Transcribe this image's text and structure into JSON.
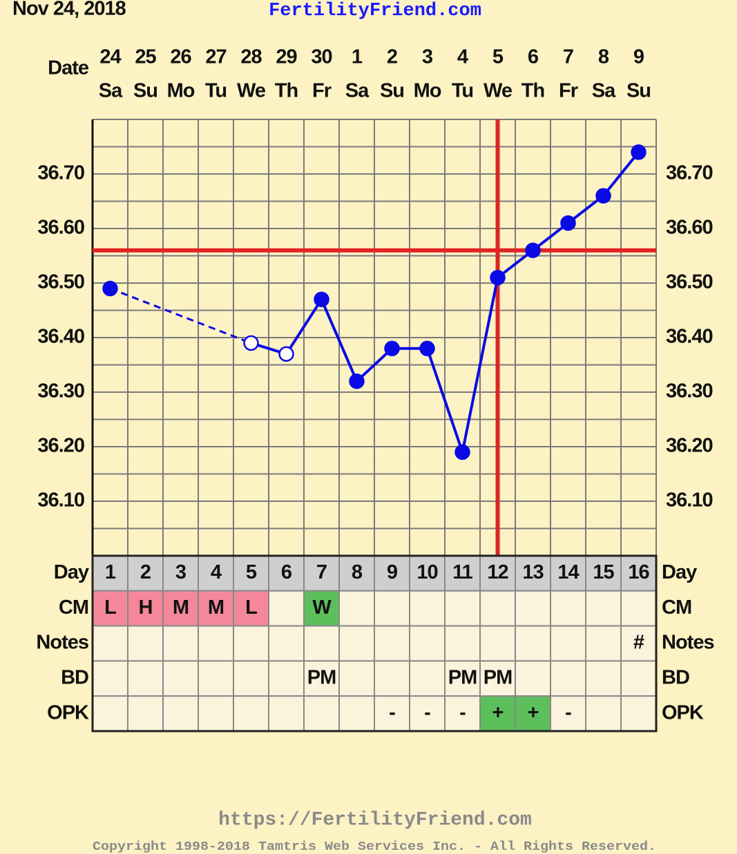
{
  "chart_data": {
    "type": "line",
    "date": "Nov 24, 2018",
    "title": "FertilityFriend.com",
    "date_label": "Date",
    "categories": [
      "24",
      "25",
      "26",
      "27",
      "28",
      "29",
      "30",
      "1",
      "2",
      "3",
      "4",
      "5",
      "6",
      "7",
      "8",
      "9"
    ],
    "weekdays": [
      "Sa",
      "Su",
      "Mo",
      "Tu",
      "We",
      "Th",
      "Fr",
      "Sa",
      "Su",
      "Mo",
      "Tu",
      "We",
      "Th",
      "Fr",
      "Sa",
      "Su"
    ],
    "series": [
      {
        "color": "#0a0ae6",
        "values": [
          36.49,
          null,
          null,
          null,
          36.39,
          36.37,
          36.47,
          36.32,
          36.38,
          36.38,
          36.19,
          36.51,
          36.56,
          36.61,
          36.66,
          36.74
        ],
        "open_markers": [
          false,
          false,
          false,
          false,
          true,
          true,
          false,
          false,
          false,
          false,
          false,
          false,
          false,
          false,
          false,
          false
        ]
      }
    ],
    "gap_line": "dashed",
    "ylim": [
      36.0,
      36.8
    ],
    "yticks": [
      {
        "value": 36.1,
        "label": "36.10"
      },
      {
        "value": 36.2,
        "label": "36.20"
      },
      {
        "value": 36.3,
        "label": "36.30"
      },
      {
        "value": 36.4,
        "label": "36.40"
      },
      {
        "value": 36.5,
        "label": "36.50"
      },
      {
        "value": 36.6,
        "label": "36.60"
      },
      {
        "value": 36.7,
        "label": "36.70"
      }
    ],
    "grid": true,
    "coverline": 36.56,
    "marker_line_color": "#e02424",
    "ovulation_day": 12,
    "table": {
      "row_labels": [
        "Day",
        "CM",
        "Notes",
        "BD",
        "OPK"
      ],
      "days": [
        1,
        2,
        3,
        4,
        5,
        6,
        7,
        8,
        9,
        10,
        11,
        12,
        13,
        14,
        15,
        16
      ],
      "rows": [
        {
          "cells": [
            "L",
            "H",
            "M",
            "M",
            "L",
            null,
            "W",
            null,
            null,
            null,
            null,
            null,
            null,
            null,
            null,
            null
          ],
          "colors": [
            "#f4889a",
            "#f4889a",
            "#f4889a",
            "#f4889a",
            "#f4889a",
            null,
            "#5cbf5c",
            null,
            null,
            null,
            null,
            null,
            null,
            null,
            null,
            null
          ]
        },
        {
          "cells": [
            null,
            null,
            null,
            null,
            null,
            null,
            null,
            null,
            null,
            null,
            null,
            null,
            null,
            null,
            null,
            "#"
          ]
        },
        {
          "cells": [
            null,
            null,
            null,
            null,
            null,
            null,
            "PM",
            null,
            null,
            null,
            "PM",
            "PM",
            null,
            null,
            null,
            null
          ]
        },
        {
          "cells": [
            null,
            null,
            null,
            null,
            null,
            null,
            null,
            null,
            "-",
            "-",
            "-",
            "+",
            "+",
            "-",
            null,
            null
          ],
          "colors": [
            null,
            null,
            null,
            null,
            null,
            null,
            null,
            null,
            null,
            null,
            null,
            "#5cbf5c",
            "#5cbf5c",
            null,
            null,
            null
          ]
        }
      ]
    },
    "footer": {
      "url": "https://FertilityFriend.com",
      "copyright": "Copyright 1998-2018 Tamtris Web Services Inc. - All Rights Reserved."
    }
  }
}
